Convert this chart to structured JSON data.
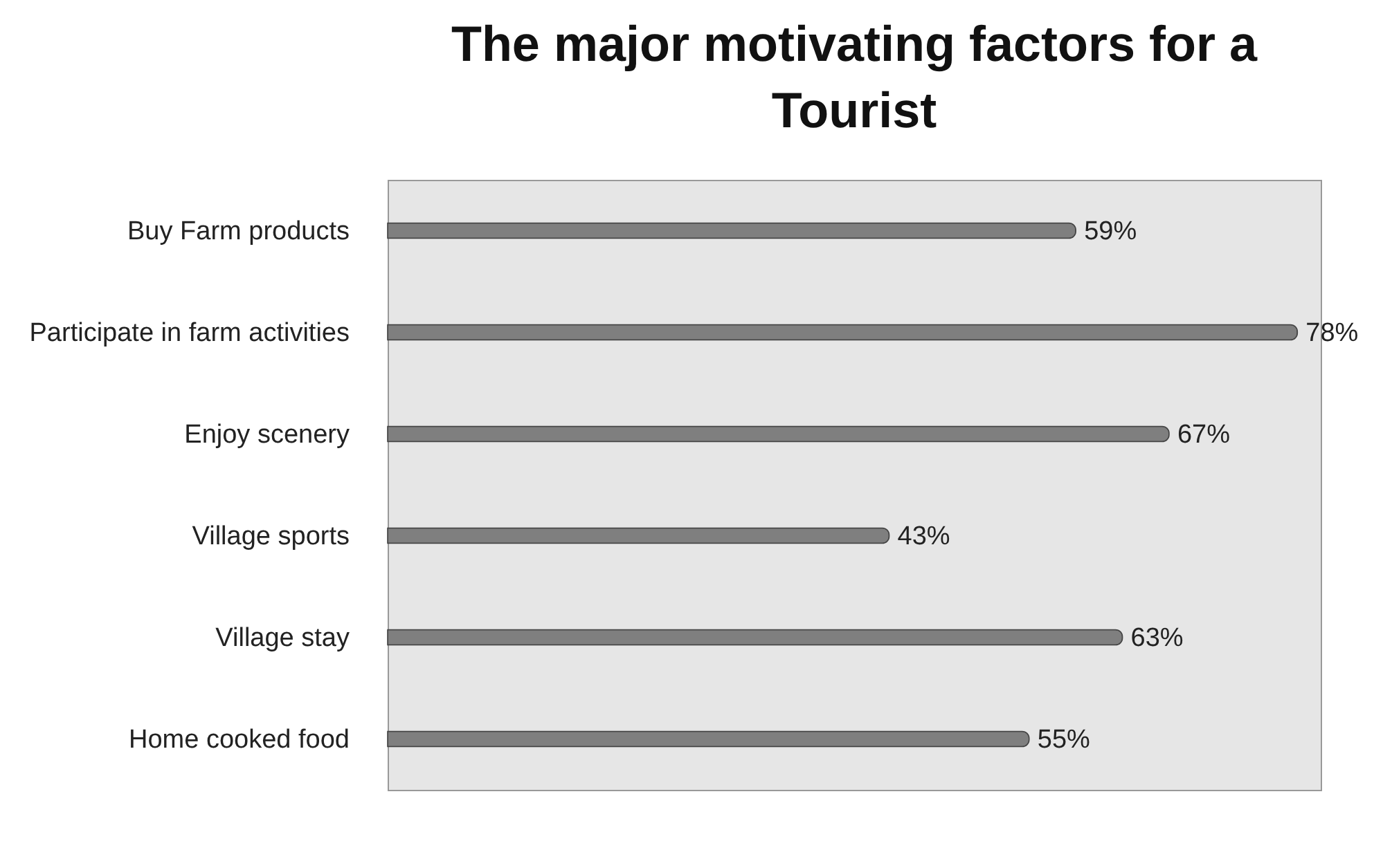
{
  "chart_data": {
    "type": "bar",
    "orientation": "horizontal",
    "title": "The major motivating factors for a Tourist",
    "categories": [
      "Buy Farm products",
      "Participate in farm activities",
      "Enjoy scenery",
      "Village sports",
      "Village stay",
      "Home cooked food"
    ],
    "values": [
      59,
      78,
      67,
      43,
      63,
      55
    ],
    "value_labels": [
      "59%",
      "78%",
      "67%",
      "43%",
      "63%",
      "55%"
    ],
    "color": "#7f7f7f",
    "grid": false,
    "tick_labels": "y"
  }
}
